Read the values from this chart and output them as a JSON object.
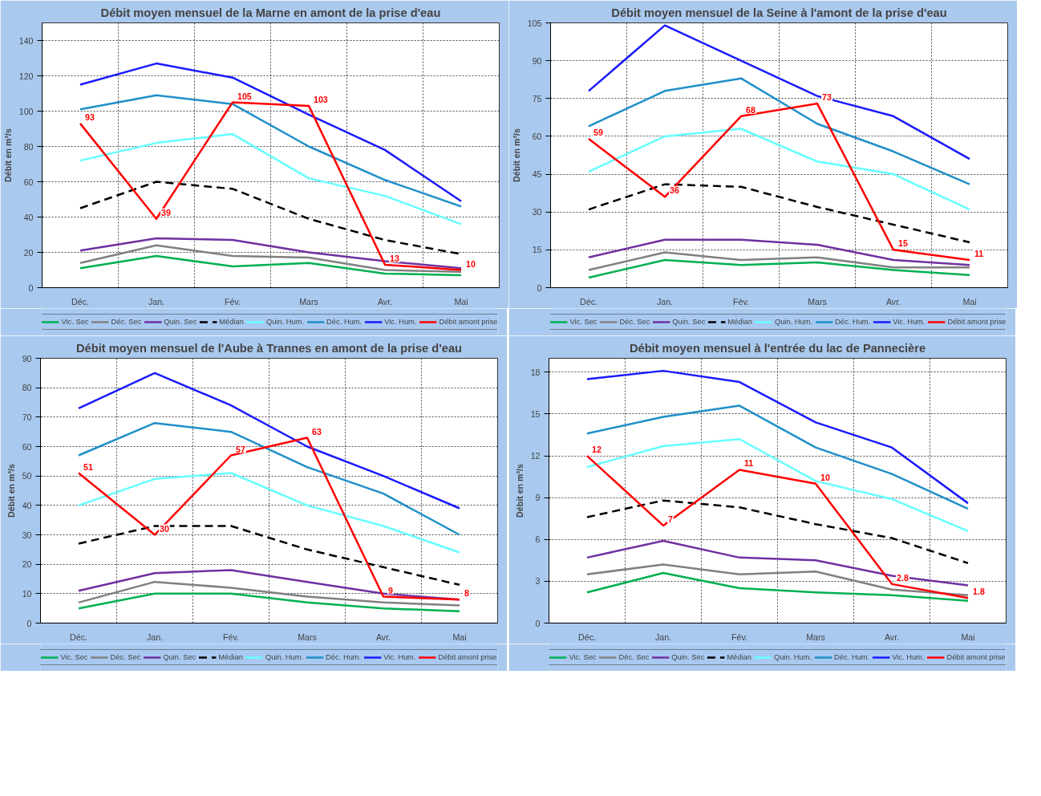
{
  "chart_data": [
    {
      "type": "line",
      "title": "Débit moyen mensuel de la Marne en amont de la prise d'eau",
      "ylabel": "Débit en m³/s",
      "categories": [
        "Déc.",
        "Jan.",
        "Fév.",
        "Mars",
        "Avr.",
        "Mai"
      ],
      "ylim": [
        0,
        150
      ],
      "yticks": [
        0,
        20,
        40,
        60,
        80,
        100,
        120,
        140
      ],
      "grid": true,
      "legend": "bottom",
      "series": [
        {
          "name": "Vic. Sec",
          "color": "#00b050",
          "values": [
            11,
            18,
            12,
            14,
            8,
            7
          ]
        },
        {
          "name": "Déc. Sec",
          "color": "#808080",
          "values": [
            14,
            24,
            18,
            17,
            10,
            9
          ]
        },
        {
          "name": "Quin. Sec",
          "color": "#7030a0",
          "values": [
            21,
            28,
            27,
            20,
            15,
            11
          ]
        },
        {
          "name": "Médian",
          "color": "#000000",
          "line_style": "dashed",
          "values": [
            45,
            60,
            56,
            39,
            27,
            19
          ]
        },
        {
          "name": "Quin. Hum.",
          "color": "#66ffff",
          "values": [
            72,
            82,
            87,
            62,
            52,
            36
          ]
        },
        {
          "name": "Déc. Hum.",
          "color": "#1f8fc8",
          "values": [
            101,
            109,
            104,
            80,
            61,
            46
          ]
        },
        {
          "name": "Vic. Hum.",
          "color": "#1a1aff",
          "values": [
            115,
            127,
            119,
            98,
            78,
            49
          ]
        },
        {
          "name": "Débit amont prise",
          "color": "#ff0000",
          "values": [
            93,
            39,
            105,
            103,
            13,
            10
          ],
          "value_labels": [
            "93",
            "39",
            "105",
            "103",
            "13",
            "10"
          ]
        }
      ]
    },
    {
      "type": "line",
      "title": "Débit moyen mensuel de la Seine à l'amont de la prise d'eau",
      "ylabel": "Débit en m³/s",
      "categories": [
        "Déc.",
        "Jan.",
        "Fév.",
        "Mars",
        "Avr.",
        "Mai"
      ],
      "ylim": [
        0,
        105
      ],
      "yticks": [
        0,
        15,
        30,
        45,
        60,
        75,
        90,
        105
      ],
      "grid": true,
      "legend": "bottom",
      "series": [
        {
          "name": "Vic. Sec",
          "color": "#00b050",
          "values": [
            4,
            11,
            9,
            10,
            7,
            5
          ]
        },
        {
          "name": "Déc. Sec",
          "color": "#808080",
          "values": [
            7,
            14,
            11,
            12,
            8,
            8
          ]
        },
        {
          "name": "Quin. Sec",
          "color": "#7030a0",
          "values": [
            12,
            19,
            19,
            17,
            11,
            9
          ]
        },
        {
          "name": "Médian",
          "color": "#000000",
          "line_style": "dashed",
          "values": [
            31,
            41,
            40,
            32,
            25,
            18
          ]
        },
        {
          "name": "Quin. Hum.",
          "color": "#66ffff",
          "values": [
            46,
            60,
            63,
            50,
            45,
            31
          ]
        },
        {
          "name": "Déc. Hum.",
          "color": "#1f8fc8",
          "values": [
            64,
            78,
            83,
            65,
            54,
            41
          ]
        },
        {
          "name": "Vic. Hum.",
          "color": "#1a1aff",
          "values": [
            78,
            104,
            90,
            76,
            68,
            51
          ]
        },
        {
          "name": "Débit amont prise",
          "color": "#ff0000",
          "values": [
            59,
            36,
            68,
            73,
            15,
            11
          ],
          "value_labels": [
            "59",
            "36",
            "68",
            "73",
            "15",
            "11"
          ]
        }
      ]
    },
    {
      "type": "line",
      "title": "Débit moyen mensuel de l'Aube à Trannes en amont de la prise d'eau",
      "ylabel": "Débit en m³/s",
      "categories": [
        "Déc.",
        "Jan.",
        "Fév.",
        "Mars",
        "Avr.",
        "Mai"
      ],
      "ylim": [
        0,
        90
      ],
      "yticks": [
        0,
        10,
        20,
        30,
        40,
        50,
        60,
        70,
        80,
        90
      ],
      "grid": true,
      "legend": "bottom",
      "series": [
        {
          "name": "Vic. Sec",
          "color": "#00b050",
          "values": [
            5,
            10,
            10,
            7,
            5,
            4
          ]
        },
        {
          "name": "Déc. Sec",
          "color": "#808080",
          "values": [
            7,
            14,
            12,
            9,
            7,
            6
          ]
        },
        {
          "name": "Quin. Sec",
          "color": "#7030a0",
          "values": [
            11,
            17,
            18,
            14,
            10,
            8
          ]
        },
        {
          "name": "Médian",
          "color": "#000000",
          "line_style": "dashed",
          "values": [
            27,
            33,
            33,
            25,
            19,
            13
          ]
        },
        {
          "name": "Quin. Hum.",
          "color": "#66ffff",
          "values": [
            40,
            49,
            51,
            40,
            33,
            24
          ]
        },
        {
          "name": "Déc. Hum.",
          "color": "#1f8fc8",
          "values": [
            57,
            68,
            65,
            53,
            44,
            30
          ]
        },
        {
          "name": "Vic. Hum.",
          "color": "#1a1aff",
          "values": [
            73,
            85,
            74,
            60,
            50,
            39
          ]
        },
        {
          "name": "Débit amont prise",
          "color": "#ff0000",
          "values": [
            51,
            30,
            57,
            63,
            9,
            8
          ],
          "value_labels": [
            "51",
            "30",
            "57",
            "63",
            "9",
            "8"
          ]
        }
      ]
    },
    {
      "type": "line",
      "title": "Débit moyen mensuel à l'entrée du lac de Pannecière",
      "ylabel": "Débit en m³/s",
      "categories": [
        "Déc.",
        "Jan.",
        "Fév.",
        "Mars",
        "Avr.",
        "Mai"
      ],
      "ylim": [
        0,
        19
      ],
      "yticks": [
        0,
        3,
        6,
        9,
        12,
        15,
        18
      ],
      "grid": true,
      "legend": "bottom",
      "series": [
        {
          "name": "Vic. Sec",
          "color": "#00b050",
          "values": [
            2.2,
            3.6,
            2.5,
            2.2,
            2.0,
            1.6
          ]
        },
        {
          "name": "Déc. Sec",
          "color": "#808080",
          "values": [
            3.5,
            4.2,
            3.5,
            3.7,
            2.4,
            2.0
          ]
        },
        {
          "name": "Quin. Sec",
          "color": "#7030a0",
          "values": [
            4.7,
            5.9,
            4.7,
            4.5,
            3.4,
            2.7
          ]
        },
        {
          "name": "Médian",
          "color": "#000000",
          "line_style": "dashed",
          "values": [
            7.6,
            8.8,
            8.3,
            7.1,
            6.1,
            4.3
          ]
        },
        {
          "name": "Quin. Hum.",
          "color": "#66ffff",
          "values": [
            11.2,
            12.7,
            13.2,
            10.2,
            8.9,
            6.6
          ]
        },
        {
          "name": "Déc. Hum.",
          "color": "#1f8fc8",
          "values": [
            13.6,
            14.8,
            15.6,
            12.6,
            10.7,
            8.2
          ]
        },
        {
          "name": "Vic. Hum.",
          "color": "#1a1aff",
          "values": [
            17.5,
            18.1,
            17.3,
            14.4,
            12.6,
            8.6
          ]
        },
        {
          "name": "Débit amont prise",
          "color": "#ff0000",
          "values": [
            12,
            7,
            11,
            10,
            2.8,
            1.8
          ],
          "value_labels": [
            "12",
            "7",
            "11",
            "10",
            "2.8",
            "1.8"
          ]
        }
      ]
    }
  ]
}
